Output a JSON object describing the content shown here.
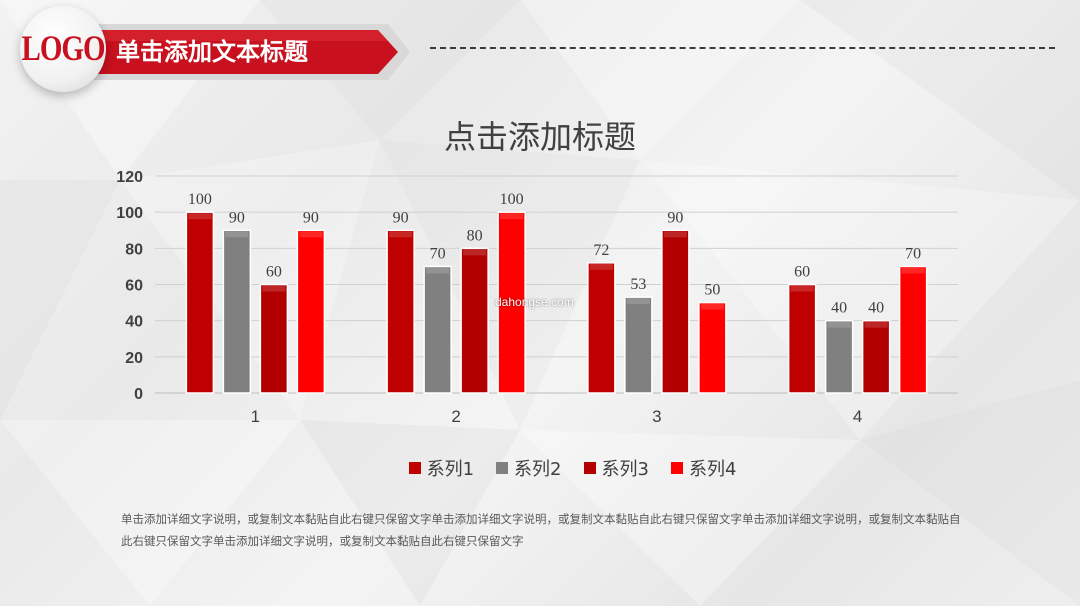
{
  "header": {
    "logo_text": "LOGO",
    "title": "单击添加文本标题"
  },
  "watermark": "dahongse.com",
  "body_text": "单击添加详细文字说明，或复制文本黏贴自此右键只保留文字单击添加详细文字说明，或复制文本黏贴自此右键只保留文字单击添加详细文字说明，或复制文本黏贴自此右键只保留文字单击添加详细文字说明，或复制文本黏贴自此右键只保留文字",
  "colors": {
    "brand_red": "#c8101e",
    "series": [
      "#c00000",
      "#808080",
      "#b20000",
      "#ff0000"
    ]
  },
  "chart_data": {
    "type": "bar",
    "title": "点击添加标题",
    "categories": [
      "1",
      "2",
      "3",
      "4"
    ],
    "series": [
      {
        "name": "系列1",
        "values": [
          100,
          90,
          72,
          60
        ]
      },
      {
        "name": "系列2",
        "values": [
          90,
          70,
          53,
          40
        ]
      },
      {
        "name": "系列3",
        "values": [
          60,
          80,
          90,
          40
        ]
      },
      {
        "name": "系列4",
        "values": [
          90,
          100,
          50,
          70
        ]
      }
    ],
    "ylim": [
      0,
      120
    ],
    "yticks": [
      0,
      20,
      40,
      60,
      80,
      100,
      120
    ],
    "grid": true,
    "legend_position": "bottom",
    "data_labels": true
  }
}
